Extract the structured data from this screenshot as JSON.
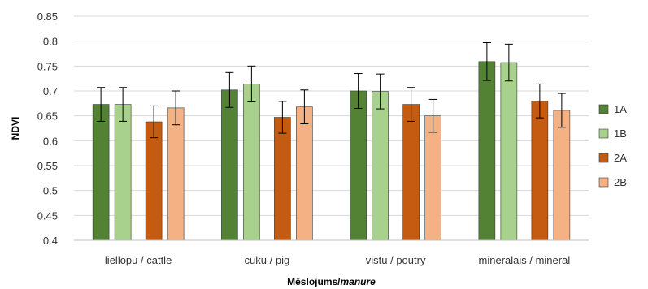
{
  "chart_data": {
    "type": "bar",
    "xlabel": "Mēslojums/",
    "xlabel_italic": "manure",
    "ylabel": "NDVI",
    "ylim": [
      0.4,
      0.85
    ],
    "yticks": [
      "0.85",
      "0.8",
      "0.75",
      "0.7",
      "0.65",
      "0.6",
      "0.55",
      "0.5",
      "0.45",
      "0.4"
    ],
    "ytick_values": [
      0.85,
      0.8,
      0.75,
      0.7,
      0.65,
      0.6,
      0.55,
      0.5,
      0.45,
      0.4
    ],
    "categories": [
      "liellopu / cattle",
      "cūku / pig",
      "vistu / poutry",
      "minerālais / mineral"
    ],
    "legend_position": "right",
    "grid": true,
    "series": [
      {
        "name": "1A",
        "color": "#548235",
        "values": [
          0.673,
          0.702,
          0.7,
          0.759
        ],
        "errors": [
          0.034,
          0.035,
          0.035,
          0.038
        ]
      },
      {
        "name": "1B",
        "color": "#a9d18e",
        "values": [
          0.673,
          0.714,
          0.699,
          0.757
        ],
        "errors": [
          0.034,
          0.036,
          0.035,
          0.037
        ]
      },
      {
        "name": "2A",
        "color": "#c55a11",
        "values": [
          0.638,
          0.647,
          0.673,
          0.68
        ],
        "errors": [
          0.032,
          0.032,
          0.034,
          0.034
        ]
      },
      {
        "name": "2B",
        "color": "#f4b183",
        "values": [
          0.666,
          0.668,
          0.65,
          0.661
        ],
        "errors": [
          0.034,
          0.034,
          0.033,
          0.034
        ]
      }
    ]
  }
}
